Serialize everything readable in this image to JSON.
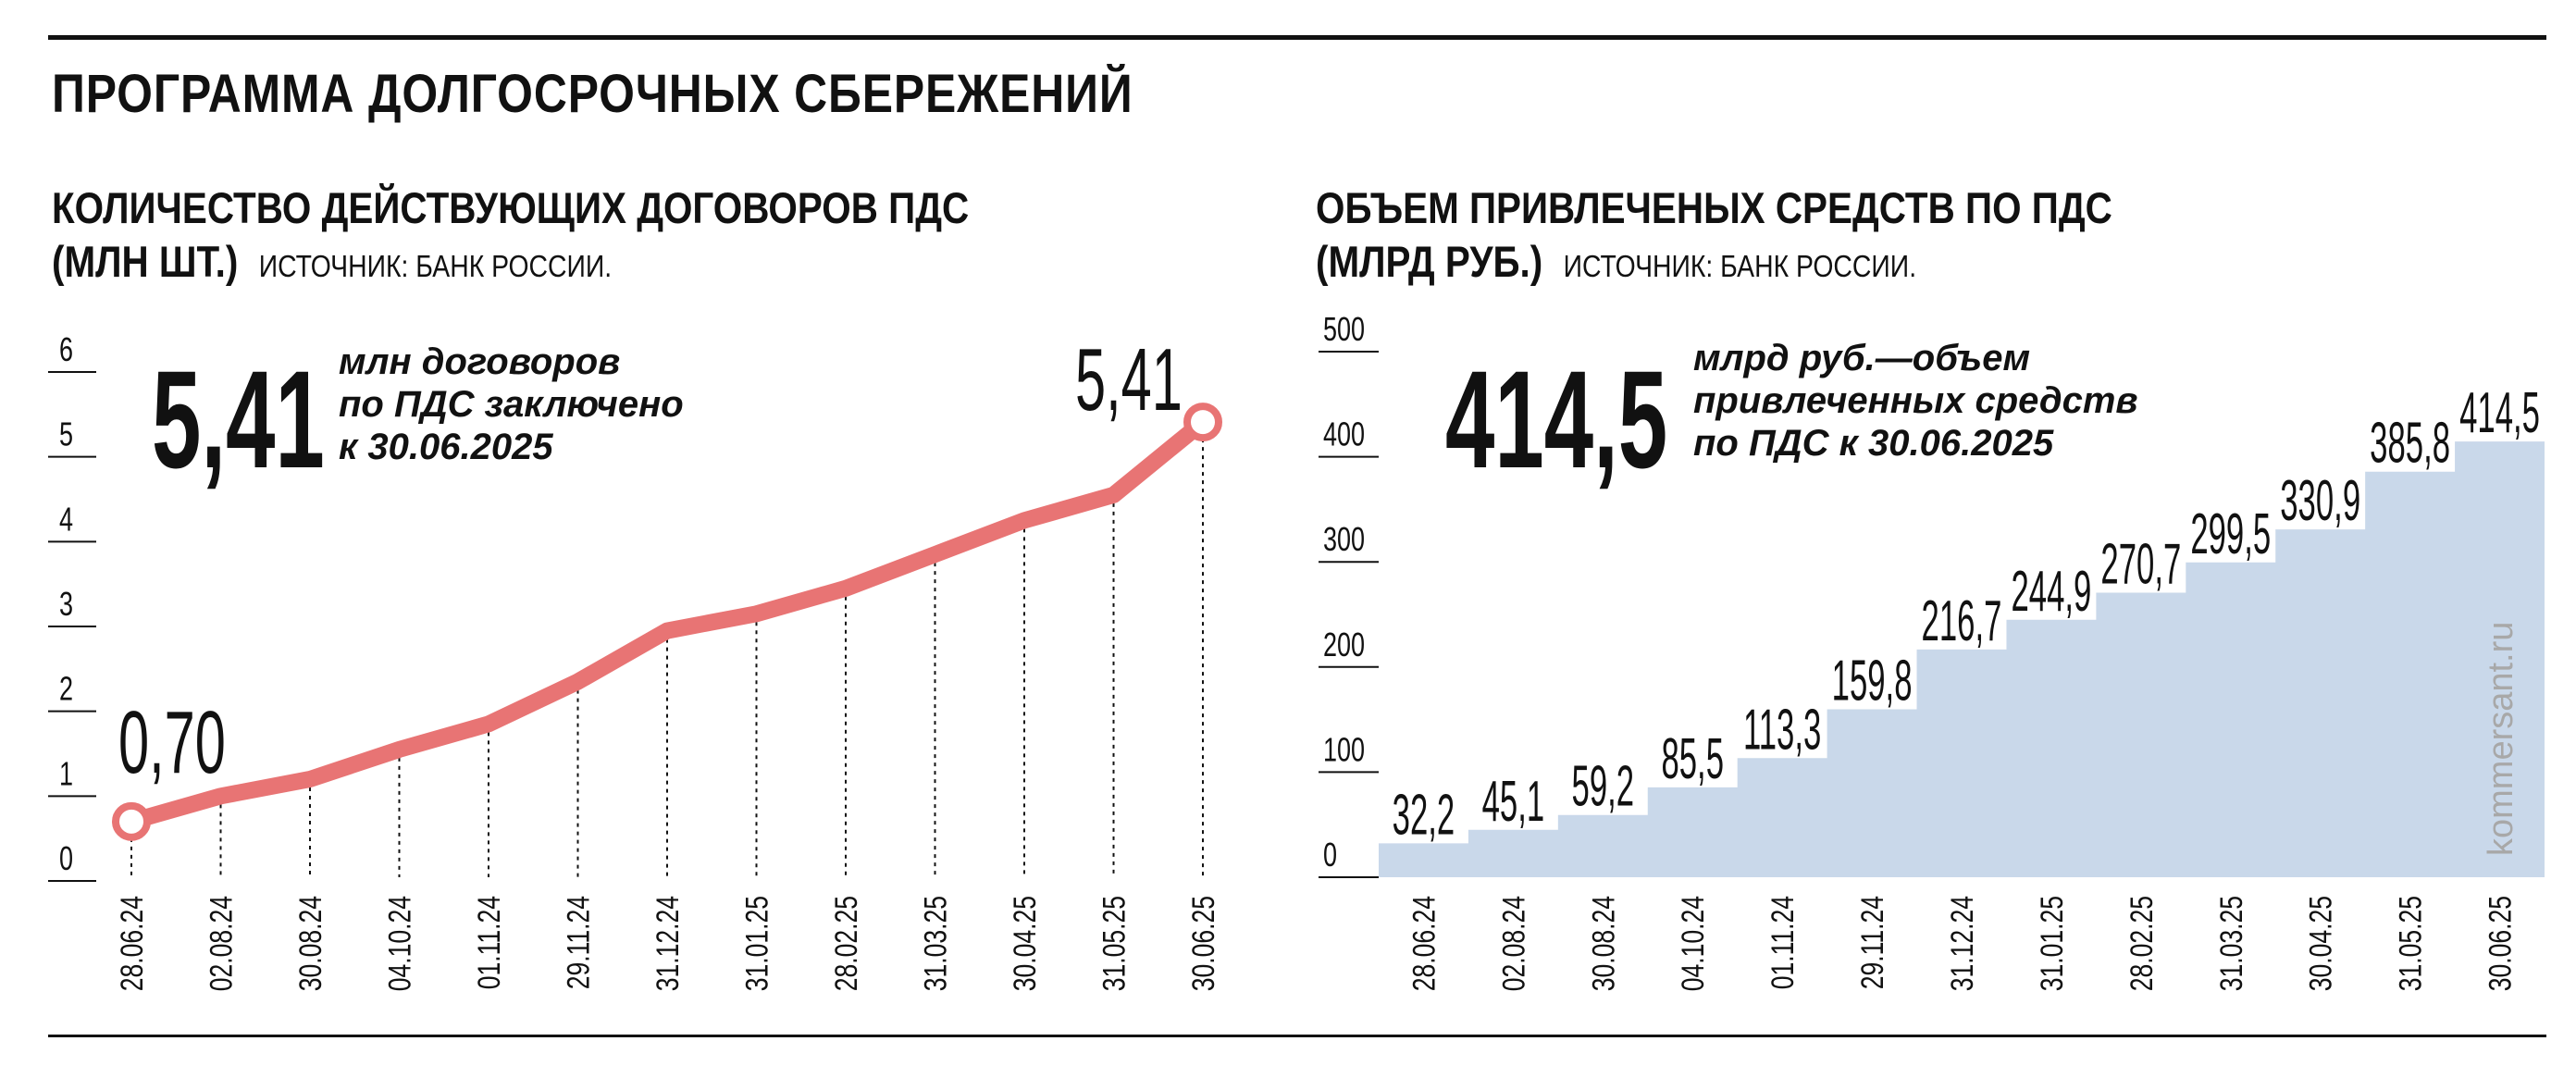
{
  "header": {
    "title": "ПРОГРАММА ДОЛГОСРОЧНЫХ СБЕРЕЖЕНИЙ"
  },
  "left": {
    "title_line1": "КОЛИЧЕСТВО ДЕЙСТВУЮЩИХ ДОГОВОРОВ ПДС",
    "title_line2": "(МЛН ШТ.)",
    "source": "ИСТОЧНИК: БАНК РОССИИ.",
    "big_number": "5,41",
    "note_line1": "млн договоров",
    "note_line2": "по ПДС заключено",
    "note_line3": "к 30.06.2025",
    "start_label": "0,70",
    "end_label": "5,41"
  },
  "right": {
    "title_line1": "ОБЪЕМ ПРИВЛЕЧЕНЫХ СРЕДСТВ ПО ПДС",
    "title_line2": "(МЛРД РУБ.)",
    "source": "ИСТОЧНИК: БАНК РОССИИ.",
    "big_number": "414,5",
    "note_line1": "млрд руб.—объем",
    "note_line2": "привлеченных средств",
    "note_line3": "по ПДС к 30.06.2025",
    "watermark": "kommersant.ru"
  },
  "colors": {
    "line": "#e87474",
    "area": "#c9d8ea",
    "text": "#111111"
  },
  "chart_data": [
    {
      "type": "line",
      "title": "КОЛИЧЕСТВО ДЕЙСТВУЮЩИХ ДОГОВОРОВ ПДС (МЛН ШТ.)",
      "x": [
        "28.06.24",
        "02.08.24",
        "30.08.24",
        "04.10.24",
        "01.11.24",
        "29.11.24",
        "31.12.24",
        "31.01.25",
        "28.02.25",
        "31.03.25",
        "30.04.25",
        "31.05.25",
        "30.06.25"
      ],
      "values": [
        0.7,
        1.0,
        1.2,
        1.55,
        1.85,
        2.35,
        2.95,
        3.15,
        3.45,
        3.85,
        4.25,
        4.55,
        5.41
      ],
      "yticks": [
        "0",
        "1",
        "2",
        "3",
        "4",
        "5",
        "6"
      ],
      "ylim": [
        0,
        6
      ],
      "grid": false
    },
    {
      "type": "area",
      "title": "ОБЪЕМ ПРИВЛЕЧЕНЫХ СРЕДСТВ ПО ПДС (МЛРД РУБ.)",
      "x": [
        "28.06.24",
        "02.08.24",
        "30.08.24",
        "04.10.24",
        "01.11.24",
        "29.11.24",
        "31.12.24",
        "31.01.25",
        "28.02.25",
        "31.03.25",
        "30.04.25",
        "31.05.25",
        "30.06.25"
      ],
      "values": [
        32.2,
        45.1,
        59.2,
        85.5,
        113.3,
        159.8,
        216.7,
        244.9,
        270.7,
        299.5,
        330.9,
        385.8,
        414.5
      ],
      "labels": [
        "32,2",
        "45,1",
        "59,2",
        "85,5",
        "113,3",
        "159,8",
        "216,7",
        "244,9",
        "270,7",
        "299,5",
        "330,9",
        "385,8",
        "414,5"
      ],
      "yticks": [
        "0",
        "100",
        "200",
        "300",
        "400",
        "500"
      ],
      "ylim": [
        0,
        500
      ],
      "step": true,
      "grid": false
    }
  ]
}
